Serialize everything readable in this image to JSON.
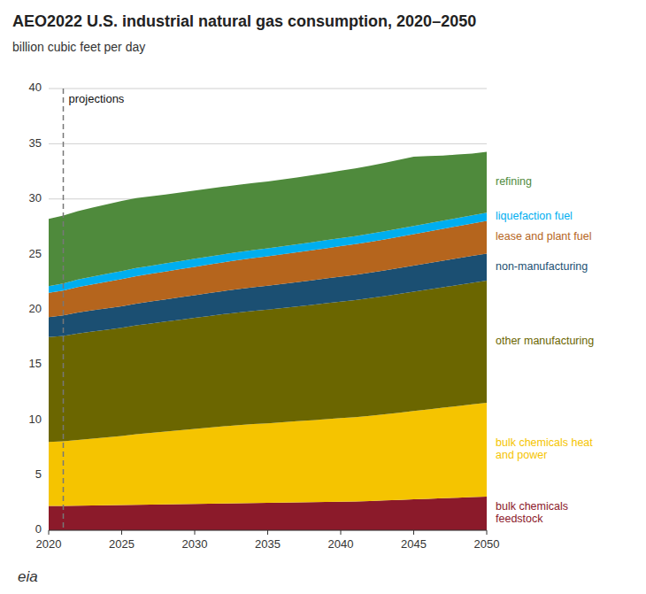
{
  "chart_data": {
    "type": "area",
    "stacked": true,
    "grid": true,
    "title": "AEO2022 U.S. industrial natural gas consumption, 2020–2050",
    "subtitle": "billion cubic feet per day",
    "x": [
      2020,
      2021,
      2022,
      2023,
      2024,
      2025,
      2026,
      2027,
      2028,
      2029,
      2030,
      2031,
      2032,
      2033,
      2034,
      2035,
      2036,
      2037,
      2038,
      2039,
      2040,
      2041,
      2042,
      2043,
      2044,
      2045,
      2046,
      2047,
      2048,
      2049,
      2050
    ],
    "series": [
      {
        "name": "bulk chemicals\nfeedstock",
        "color": "#8B1A2A",
        "values": [
          2.2,
          2.2,
          2.22,
          2.24,
          2.26,
          2.28,
          2.3,
          2.32,
          2.34,
          2.36,
          2.38,
          2.4,
          2.42,
          2.44,
          2.46,
          2.48,
          2.5,
          2.52,
          2.54,
          2.56,
          2.58,
          2.6,
          2.65,
          2.7,
          2.75,
          2.8,
          2.85,
          2.9,
          2.95,
          3.0,
          3.05
        ]
      },
      {
        "name": "bulk chemicals heat\nand power",
        "color": "#F5C400",
        "values": [
          5.8,
          5.85,
          5.95,
          6.05,
          6.15,
          6.25,
          6.4,
          6.5,
          6.6,
          6.7,
          6.8,
          6.9,
          7.0,
          7.08,
          7.15,
          7.2,
          7.28,
          7.35,
          7.42,
          7.5,
          7.58,
          7.65,
          7.72,
          7.8,
          7.9,
          8.0,
          8.1,
          8.2,
          8.3,
          8.4,
          8.5
        ]
      },
      {
        "name": "other manufacturing",
        "color": "#6B6600",
        "values": [
          9.5,
          9.55,
          9.65,
          9.7,
          9.75,
          9.8,
          9.85,
          9.9,
          9.95,
          10.0,
          10.05,
          10.1,
          10.15,
          10.2,
          10.25,
          10.3,
          10.35,
          10.4,
          10.45,
          10.5,
          10.55,
          10.6,
          10.65,
          10.7,
          10.75,
          10.8,
          10.85,
          10.9,
          10.95,
          11.0,
          11.05
        ]
      },
      {
        "name": "non-manufacturing",
        "color": "#1B4F72",
        "values": [
          1.8,
          1.85,
          1.9,
          1.92,
          1.94,
          1.96,
          1.98,
          2.0,
          2.02,
          2.04,
          2.06,
          2.08,
          2.1,
          2.12,
          2.14,
          2.16,
          2.18,
          2.2,
          2.22,
          2.24,
          2.26,
          2.28,
          2.3,
          2.32,
          2.34,
          2.36,
          2.38,
          2.4,
          2.42,
          2.44,
          2.46
        ]
      },
      {
        "name": "lease and plant fuel",
        "color": "#B5651D",
        "values": [
          2.2,
          2.25,
          2.3,
          2.35,
          2.4,
          2.45,
          2.48,
          2.5,
          2.52,
          2.54,
          2.56,
          2.58,
          2.6,
          2.62,
          2.64,
          2.66,
          2.68,
          2.7,
          2.72,
          2.74,
          2.76,
          2.78,
          2.8,
          2.82,
          2.84,
          2.86,
          2.88,
          2.9,
          2.92,
          2.94,
          2.96
        ]
      },
      {
        "name": "liquefaction fuel",
        "color": "#00AEEF",
        "values": [
          0.6,
          0.65,
          0.68,
          0.7,
          0.72,
          0.73,
          0.73,
          0.73,
          0.73,
          0.73,
          0.73,
          0.73,
          0.73,
          0.73,
          0.73,
          0.73,
          0.73,
          0.73,
          0.73,
          0.73,
          0.73,
          0.73,
          0.73,
          0.73,
          0.73,
          0.73,
          0.73,
          0.73,
          0.73,
          0.73,
          0.73
        ]
      },
      {
        "name": "refining",
        "color": "#4F8A3C",
        "values": [
          6.1,
          6.15,
          6.2,
          6.25,
          6.3,
          6.35,
          6.35,
          6.3,
          6.25,
          6.22,
          6.18,
          6.15,
          6.12,
          6.1,
          6.08,
          6.06,
          6.05,
          6.05,
          6.06,
          6.08,
          6.1,
          6.13,
          6.16,
          6.2,
          6.24,
          6.28,
          6.1,
          5.9,
          5.75,
          5.6,
          5.52
        ]
      }
    ],
    "xlim": [
      2020,
      2050
    ],
    "xticks": [
      2020,
      2025,
      2030,
      2035,
      2040,
      2045,
      2050
    ],
    "ylim": [
      0,
      40
    ],
    "yticks": [
      0,
      5,
      10,
      15,
      20,
      25,
      30,
      35,
      40
    ],
    "annotations": [
      {
        "text": "projections",
        "x": 2021
      },
      {
        "text": "eia"
      }
    ]
  }
}
